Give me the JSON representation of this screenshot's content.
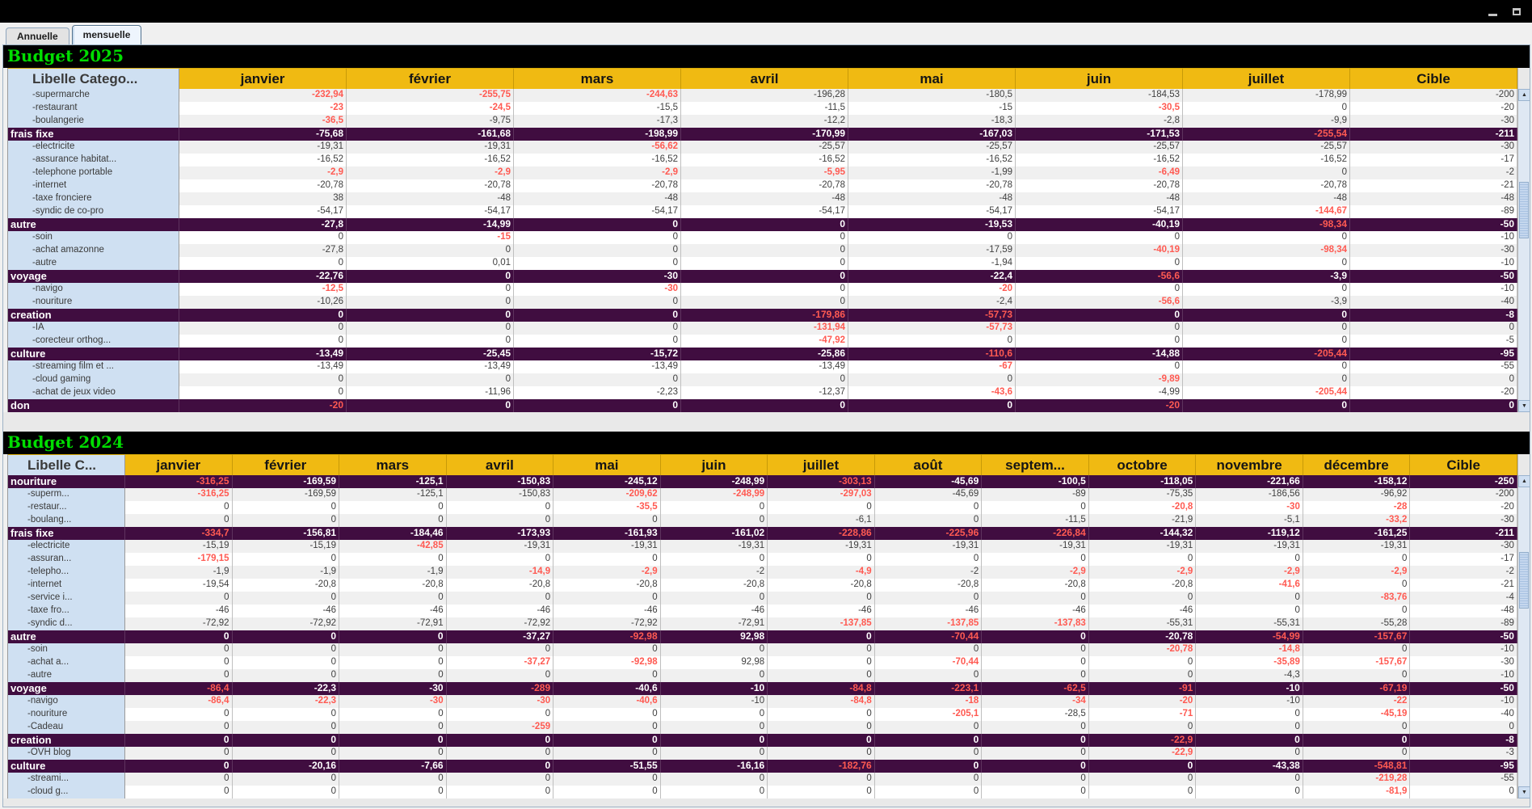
{
  "window": {
    "icons": {
      "minimize": "minimize-icon",
      "maximize": "maximize-icon",
      "scroll_up": "▲",
      "scroll_down": "▼"
    }
  },
  "colors": {
    "title_green": "#00dd00",
    "header_gold": "#f0ba12",
    "category_purple": "#400d40",
    "negative_red": "#ff5a52",
    "label_blue": "#cfe0f2"
  },
  "tabs": [
    {
      "label": "Annuelle",
      "selected": false
    },
    {
      "label": "mensuelle",
      "selected": true
    }
  ],
  "tables": [
    {
      "title": "Budget 2025",
      "columns": [
        "Libelle Catego...",
        "janvier",
        "février",
        "mars",
        "avril",
        "mai",
        "juin",
        "juillet",
        "Cible"
      ],
      "rows": [
        {
          "label": "-supermarche",
          "cat": false,
          "values": [
            "!-232,94",
            "!-255,75",
            "!-244,63",
            "-196,28",
            "-180,5",
            "-184,53",
            "-178,99",
            "-200"
          ]
        },
        {
          "label": "-restaurant",
          "cat": false,
          "values": [
            "!-23",
            "!-24,5",
            "-15,5",
            "-11,5",
            "-15",
            "!-30,5",
            "0",
            "-20"
          ]
        },
        {
          "label": "-boulangerie",
          "cat": false,
          "values": [
            "!-36,5",
            "-9,75",
            "-17,3",
            "-12,2",
            "-18,3",
            "-2,8",
            "-9,9",
            "-30"
          ]
        },
        {
          "label": "frais fixe",
          "cat": true,
          "values": [
            "-75,68",
            "-161,68",
            "-198,99",
            "-170,99",
            "-167,03",
            "-171,53",
            "!-255,54",
            "-211"
          ]
        },
        {
          "label": "-electricite",
          "cat": false,
          "values": [
            "-19,31",
            "-19,31",
            "!-56,62",
            "-25,57",
            "-25,57",
            "-25,57",
            "-25,57",
            "-30"
          ]
        },
        {
          "label": "-assurance habitat...",
          "cat": false,
          "values": [
            "-16,52",
            "-16,52",
            "-16,52",
            "-16,52",
            "-16,52",
            "-16,52",
            "-16,52",
            "-17"
          ]
        },
        {
          "label": "-telephone portable",
          "cat": false,
          "values": [
            "!-2,9",
            "!-2,9",
            "!-2,9",
            "!-5,95",
            "-1,99",
            "!-6,49",
            "0",
            "-2"
          ]
        },
        {
          "label": "-internet",
          "cat": false,
          "values": [
            "-20,78",
            "-20,78",
            "-20,78",
            "-20,78",
            "-20,78",
            "-20,78",
            "-20,78",
            "-21"
          ]
        },
        {
          "label": "-taxe fronciere",
          "cat": false,
          "values": [
            "38",
            "-48",
            "-48",
            "-48",
            "-48",
            "-48",
            "-48",
            "-48"
          ]
        },
        {
          "label": "-syndic de co-pro",
          "cat": false,
          "values": [
            "-54,17",
            "-54,17",
            "-54,17",
            "-54,17",
            "-54,17",
            "-54,17",
            "!-144,67",
            "-89"
          ]
        },
        {
          "label": "autre",
          "cat": true,
          "values": [
            "-27,8",
            "-14,99",
            "0",
            "0",
            "-19,53",
            "-40,19",
            "!-98,34",
            "-50"
          ]
        },
        {
          "label": "-soin",
          "cat": false,
          "values": [
            "0",
            "!-15",
            "0",
            "0",
            "0",
            "0",
            "0",
            "-10"
          ]
        },
        {
          "label": "-achat amazonne",
          "cat": false,
          "values": [
            "-27,8",
            "0",
            "0",
            "0",
            "-17,59",
            "!-40,19",
            "!-98,34",
            "-30"
          ]
        },
        {
          "label": "-autre",
          "cat": false,
          "values": [
            "0",
            "0,01",
            "0",
            "0",
            "-1,94",
            "0",
            "0",
            "-10"
          ]
        },
        {
          "label": "voyage",
          "cat": true,
          "values": [
            "-22,76",
            "0",
            "-30",
            "0",
            "-22,4",
            "!-56,6",
            "-3,9",
            "-50"
          ]
        },
        {
          "label": "-navigo",
          "cat": false,
          "values": [
            "!-12,5",
            "0",
            "!-30",
            "0",
            "!-20",
            "0",
            "0",
            "-10"
          ]
        },
        {
          "label": "-nouriture",
          "cat": false,
          "values": [
            "-10,26",
            "0",
            "0",
            "0",
            "-2,4",
            "!-56,6",
            "-3,9",
            "-40"
          ]
        },
        {
          "label": "creation",
          "cat": true,
          "values": [
            "0",
            "0",
            "0",
            "!-179,86",
            "!-57,73",
            "0",
            "0",
            "-8"
          ]
        },
        {
          "label": "-IA",
          "cat": false,
          "values": [
            "0",
            "0",
            "0",
            "!-131,94",
            "!-57,73",
            "0",
            "0",
            "0"
          ]
        },
        {
          "label": "-corecteur orthog...",
          "cat": false,
          "values": [
            "0",
            "0",
            "0",
            "!-47,92",
            "0",
            "0",
            "0",
            "-5"
          ]
        },
        {
          "label": "culture",
          "cat": true,
          "values": [
            "-13,49",
            "-25,45",
            "-15,72",
            "-25,86",
            "!-110,6",
            "-14,88",
            "!-205,44",
            "-95"
          ]
        },
        {
          "label": "-streaming film et ...",
          "cat": false,
          "values": [
            "-13,49",
            "-13,49",
            "-13,49",
            "-13,49",
            "!-67",
            "0",
            "0",
            "-55"
          ]
        },
        {
          "label": "-cloud gaming",
          "cat": false,
          "values": [
            "0",
            "0",
            "0",
            "0",
            "0",
            "!-9,89",
            "0",
            "0"
          ]
        },
        {
          "label": "-achat de jeux video",
          "cat": false,
          "values": [
            "0",
            "-11,96",
            "-2,23",
            "-12,37",
            "!-43,6",
            "-4,99",
            "!-205,44",
            "-20"
          ]
        },
        {
          "label": "don",
          "cat": true,
          "values": [
            "!-20",
            "0",
            "0",
            "0",
            "0",
            "!-20",
            "0",
            "0"
          ]
        }
      ]
    },
    {
      "title": "Budget 2024",
      "columns": [
        "Libelle C...",
        "janvier",
        "février",
        "mars",
        "avril",
        "mai",
        "juin",
        "juillet",
        "août",
        "septem...",
        "octobre",
        "novembre",
        "décembre",
        "Cible"
      ],
      "rows": [
        {
          "label": "nouriture",
          "cat": true,
          "values": [
            "!-316,25",
            "-169,59",
            "-125,1",
            "-150,83",
            "-245,12",
            "-248,99",
            "!-303,13",
            "-45,69",
            "-100,5",
            "-118,05",
            "-221,66",
            "-158,12",
            "-250"
          ]
        },
        {
          "label": "-superm...",
          "cat": false,
          "values": [
            "!-316,25",
            "-169,59",
            "-125,1",
            "-150,83",
            "!-209,62",
            "!-248,99",
            "!-297,03",
            "-45,69",
            "-89",
            "-75,35",
            "-186,56",
            "-96,92",
            "-200"
          ]
        },
        {
          "label": "-restaur...",
          "cat": false,
          "values": [
            "0",
            "0",
            "0",
            "0",
            "!-35,5",
            "0",
            "0",
            "0",
            "0",
            "!-20,8",
            "!-30",
            "!-28",
            "-20"
          ]
        },
        {
          "label": "-boulang...",
          "cat": false,
          "values": [
            "0",
            "0",
            "0",
            "0",
            "0",
            "0",
            "-6,1",
            "0",
            "-11,5",
            "-21,9",
            "-5,1",
            "!-33,2",
            "-30"
          ]
        },
        {
          "label": "frais fixe",
          "cat": true,
          "values": [
            "!-334,7",
            "-156,81",
            "-184,46",
            "-173,93",
            "-161,93",
            "-161,02",
            "!-228,86",
            "!-225,96",
            "!-226,84",
            "-144,32",
            "-119,12",
            "-161,25",
            "-211"
          ]
        },
        {
          "label": "-electricite",
          "cat": false,
          "values": [
            "-15,19",
            "-15,19",
            "!-42,85",
            "-19,31",
            "-19,31",
            "-19,31",
            "-19,31",
            "-19,31",
            "-19,31",
            "-19,31",
            "-19,31",
            "-19,31",
            "-30"
          ]
        },
        {
          "label": "-assuran...",
          "cat": false,
          "values": [
            "!-179,15",
            "0",
            "0",
            "0",
            "0",
            "0",
            "0",
            "0",
            "0",
            "0",
            "0",
            "0",
            "-17"
          ]
        },
        {
          "label": "-telepho...",
          "cat": false,
          "values": [
            "-1,9",
            "-1,9",
            "-1,9",
            "!-14,9",
            "!-2,9",
            "-2",
            "!-4,9",
            "-2",
            "!-2,9",
            "!-2,9",
            "!-2,9",
            "!-2,9",
            "-2"
          ]
        },
        {
          "label": "-internet",
          "cat": false,
          "values": [
            "-19,54",
            "-20,8",
            "-20,8",
            "-20,8",
            "-20,8",
            "-20,8",
            "-20,8",
            "-20,8",
            "-20,8",
            "-20,8",
            "!-41,6",
            "0",
            "-21"
          ]
        },
        {
          "label": "-service i...",
          "cat": false,
          "values": [
            "0",
            "0",
            "0",
            "0",
            "0",
            "0",
            "0",
            "0",
            "0",
            "0",
            "0",
            "!-83,76",
            "-4"
          ]
        },
        {
          "label": "-taxe fro...",
          "cat": false,
          "values": [
            "-46",
            "-46",
            "-46",
            "-46",
            "-46",
            "-46",
            "-46",
            "-46",
            "-46",
            "-46",
            "0",
            "0",
            "-48"
          ]
        },
        {
          "label": "-syndic d...",
          "cat": false,
          "values": [
            "-72,92",
            "-72,92",
            "-72,91",
            "-72,92",
            "-72,92",
            "-72,91",
            "!-137,85",
            "!-137,85",
            "!-137,83",
            "-55,31",
            "-55,31",
            "-55,28",
            "-89"
          ]
        },
        {
          "label": "autre",
          "cat": true,
          "values": [
            "0",
            "0",
            "0",
            "-37,27",
            "!-92,98",
            "92,98",
            "0",
            "!-70,44",
            "0",
            "-20,78",
            "!-54,99",
            "!-157,67",
            "-50"
          ]
        },
        {
          "label": "-soin",
          "cat": false,
          "values": [
            "0",
            "0",
            "0",
            "0",
            "0",
            "0",
            "0",
            "0",
            "0",
            "!-20,78",
            "!-14,8",
            "0",
            "-10"
          ]
        },
        {
          "label": "-achat a...",
          "cat": false,
          "values": [
            "0",
            "0",
            "0",
            "!-37,27",
            "!-92,98",
            "92,98",
            "0",
            "!-70,44",
            "0",
            "0",
            "!-35,89",
            "!-157,67",
            "-30"
          ]
        },
        {
          "label": "-autre",
          "cat": false,
          "values": [
            "0",
            "0",
            "0",
            "0",
            "0",
            "0",
            "0",
            "0",
            "0",
            "0",
            "-4,3",
            "0",
            "-10"
          ]
        },
        {
          "label": "voyage",
          "cat": true,
          "values": [
            "!-86,4",
            "-22,3",
            "-30",
            "!-289",
            "-40,6",
            "-10",
            "!-84,8",
            "!-223,1",
            "!-62,5",
            "!-91",
            "-10",
            "!-67,19",
            "-50"
          ]
        },
        {
          "label": "-navigo",
          "cat": false,
          "values": [
            "!-86,4",
            "!-22,3",
            "!-30",
            "!-30",
            "!-40,6",
            "-10",
            "!-84,8",
            "!-18",
            "!-34",
            "!-20",
            "-10",
            "!-22",
            "-10"
          ]
        },
        {
          "label": "-nouriture",
          "cat": false,
          "values": [
            "0",
            "0",
            "0",
            "0",
            "0",
            "0",
            "0",
            "!-205,1",
            "-28,5",
            "!-71",
            "0",
            "!-45,19",
            "-40"
          ]
        },
        {
          "label": "-Cadeau",
          "cat": false,
          "values": [
            "0",
            "0",
            "0",
            "!-259",
            "0",
            "0",
            "0",
            "0",
            "0",
            "0",
            "0",
            "0",
            "0"
          ]
        },
        {
          "label": "creation",
          "cat": true,
          "values": [
            "0",
            "0",
            "0",
            "0",
            "0",
            "0",
            "0",
            "0",
            "0",
            "!-22,9",
            "0",
            "0",
            "-8"
          ]
        },
        {
          "label": "-OVH blog",
          "cat": false,
          "values": [
            "0",
            "0",
            "0",
            "0",
            "0",
            "0",
            "0",
            "0",
            "0",
            "!-22,9",
            "0",
            "0",
            "-3"
          ]
        },
        {
          "label": "culture",
          "cat": true,
          "values": [
            "0",
            "-20,16",
            "-7,66",
            "0",
            "-51,55",
            "-16,16",
            "!-182,76",
            "0",
            "0",
            "0",
            "-43,38",
            "!-548,81",
            "-95"
          ]
        },
        {
          "label": "-streami...",
          "cat": false,
          "values": [
            "0",
            "0",
            "0",
            "0",
            "0",
            "0",
            "0",
            "0",
            "0",
            "0",
            "0",
            "!-219,28",
            "-55"
          ]
        },
        {
          "label": "-cloud g...",
          "cat": false,
          "values": [
            "0",
            "0",
            "0",
            "0",
            "0",
            "0",
            "0",
            "0",
            "0",
            "0",
            "0",
            "!-81,9",
            "0"
          ]
        }
      ]
    }
  ]
}
